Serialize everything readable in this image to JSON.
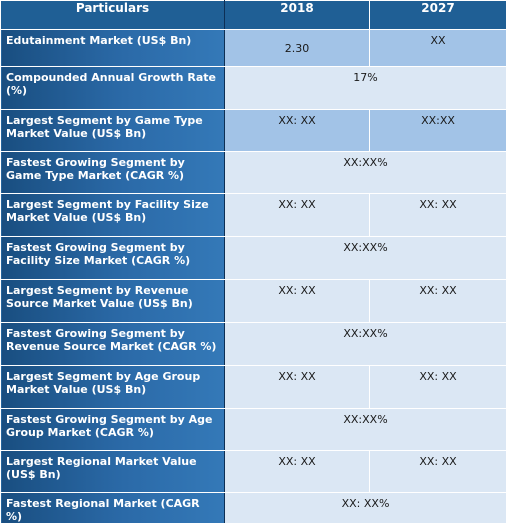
{
  "table": {
    "headers": [
      "Particulars",
      "2018",
      "2027"
    ],
    "rows": [
      {
        "label": "Edutainment Market (US$ Bn)",
        "v2018": "2.30",
        "v2027": "XX"
      },
      {
        "label": "Compounded Annual Growth Rate (%)",
        "span": "17%"
      },
      {
        "label": "Largest Segment by Game Type Market Value (US$ Bn)",
        "v2018": "XX: XX",
        "v2027": "XX:XX"
      },
      {
        "label": "Fastest Growing Segment by Game Type Market (CAGR %)",
        "span": "XX:XX%"
      },
      {
        "label": "Largest Segment by Facility Size Market Value (US$ Bn)",
        "v2018": "XX: XX",
        "v2027": "XX: XX"
      },
      {
        "label": "Fastest Growing Segment by Facility Size Market (CAGR %)",
        "span": "XX:XX%"
      },
      {
        "label": "Largest Segment by Revenue Source Market Value (US$ Bn)",
        "v2018": "XX: XX",
        "v2027": "XX: XX"
      },
      {
        "label": "Fastest Growing Segment by Revenue Source Market (CAGR %)",
        "span": "XX:XX%"
      },
      {
        "label": "Largest Segment by Age Group Market Value (US$ Bn)",
        "v2018": "XX: XX",
        "v2027": "XX: XX"
      },
      {
        "label": "Fastest Growing Segment by Age Group Market (CAGR %)",
        "span": "XX:XX%"
      },
      {
        "label": "Largest Regional Market Value (US$ Bn)",
        "v2018": "XX: XX",
        "v2027": "XX: XX"
      },
      {
        "label": "Fastest Regional Market (CAGR %)",
        "span": "XX: XX%"
      }
    ]
  }
}
